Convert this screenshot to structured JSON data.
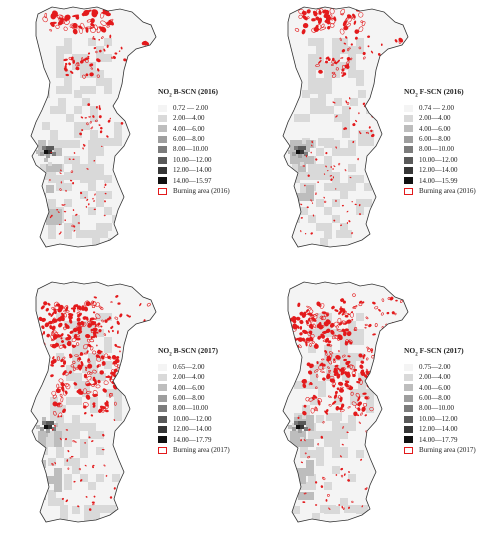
{
  "panels": [
    {
      "title_prefix": "NO",
      "title_sub": "2",
      "title_suffix": " B-SCN (2016)",
      "classes": [
        "0.72 — 2.00",
        "2.00—4.00",
        "4.00—6.00",
        "6.00—8.00",
        "8.00—10.00",
        "10.00—12.00",
        "12.00—14.00",
        "14.00—15.97"
      ],
      "burn_label": "Burning area (2016)"
    },
    {
      "title_prefix": "NO",
      "title_sub": "2",
      "title_suffix": " F-SCN (2016)",
      "classes": [
        "0.74 — 2.00",
        "2.00—4.00",
        "4.00—6.00",
        "6.00—8.00",
        "8.00—10.00",
        "10.00—12.00",
        "12.00—14.00",
        "14.00—15.99"
      ],
      "burn_label": "Burning area (2016)"
    },
    {
      "title_prefix": "NO",
      "title_sub": "2",
      "title_suffix": " B-SCN (2017)",
      "classes": [
        "0.65—2.00",
        "2.00—4.00",
        "4.00—6.00",
        "6.00—8.00",
        "8.00—10.00",
        "10.00—12.00",
        "12.00—14.00",
        "14.00—17.79"
      ],
      "burn_label": "Burning area (2017)"
    },
    {
      "title_prefix": "NO",
      "title_sub": "2",
      "title_suffix": " F-SCN (2017)",
      "classes": [
        "0.75—2.00",
        "2.00—4.00",
        "4.00—6.00",
        "6.00—8.00",
        "8.00—10.00",
        "10.00—12.00",
        "12.00—14.00",
        "14.00—17.79"
      ],
      "burn_label": "Burning area (2017)"
    }
  ],
  "colors": {
    "classes": [
      "#f4f4f4",
      "#d9d9d9",
      "#bdbdbd",
      "#9e9e9e",
      "#7c7c7c",
      "#5a5a5a",
      "#373737",
      "#111111"
    ],
    "burn": "#e31a1c",
    "outline": "#333333"
  }
}
